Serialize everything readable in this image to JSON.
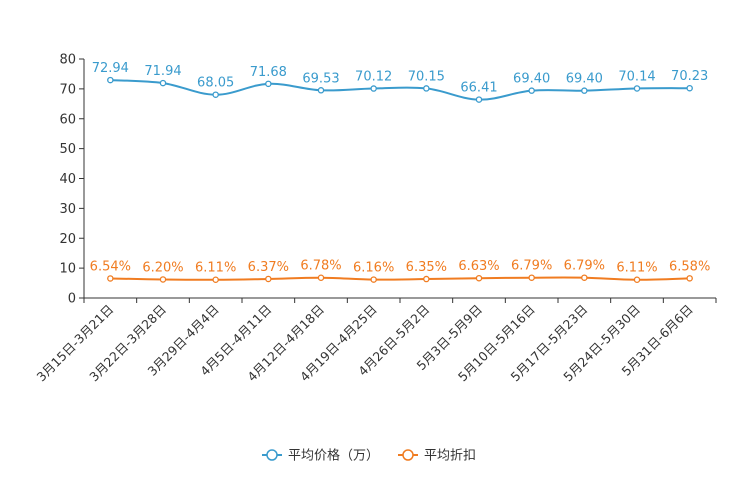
{
  "chart_data": {
    "type": "line",
    "title": "",
    "xlabel": "",
    "ylabel": "",
    "ylim": [
      0,
      80
    ],
    "yticks": [
      0,
      10,
      20,
      30,
      40,
      50,
      60,
      70,
      80
    ],
    "grid": false,
    "legend_position": "bottom-center",
    "categories": [
      "3月15日-3月21日",
      "3月22日-3月28日",
      "3月29日-4月4日",
      "4月5日-4月11日",
      "4月12日-4月18日",
      "4月19日-4月25日",
      "4月26日-5月2日",
      "5月3日-5月9日",
      "5月10日-5月16日",
      "5月17日-5月23日",
      "5月24日-5月30日",
      "5月31日-6月6日"
    ],
    "series": [
      {
        "name": "平均价格（万）",
        "color": "#3a9bcd",
        "values": [
          72.94,
          71.94,
          68.05,
          71.68,
          69.53,
          70.12,
          70.15,
          66.41,
          69.4,
          69.4,
          70.14,
          70.23
        ],
        "labels": [
          "72.94",
          "71.94",
          "68.05",
          "71.68",
          "69.53",
          "70.12",
          "70.15",
          "66.41",
          "69.40",
          "69.40",
          "70.14",
          "70.23"
        ]
      },
      {
        "name": "平均折扣",
        "color": "#f07c21",
        "values": [
          6.54,
          6.2,
          6.11,
          6.37,
          6.78,
          6.16,
          6.35,
          6.63,
          6.79,
          6.79,
          6.11,
          6.58
        ],
        "labels": [
          "6.54%",
          "6.20%",
          "6.11%",
          "6.37%",
          "6.78%",
          "6.16%",
          "6.35%",
          "6.63%",
          "6.79%",
          "6.79%",
          "6.11%",
          "6.58%"
        ]
      }
    ]
  }
}
